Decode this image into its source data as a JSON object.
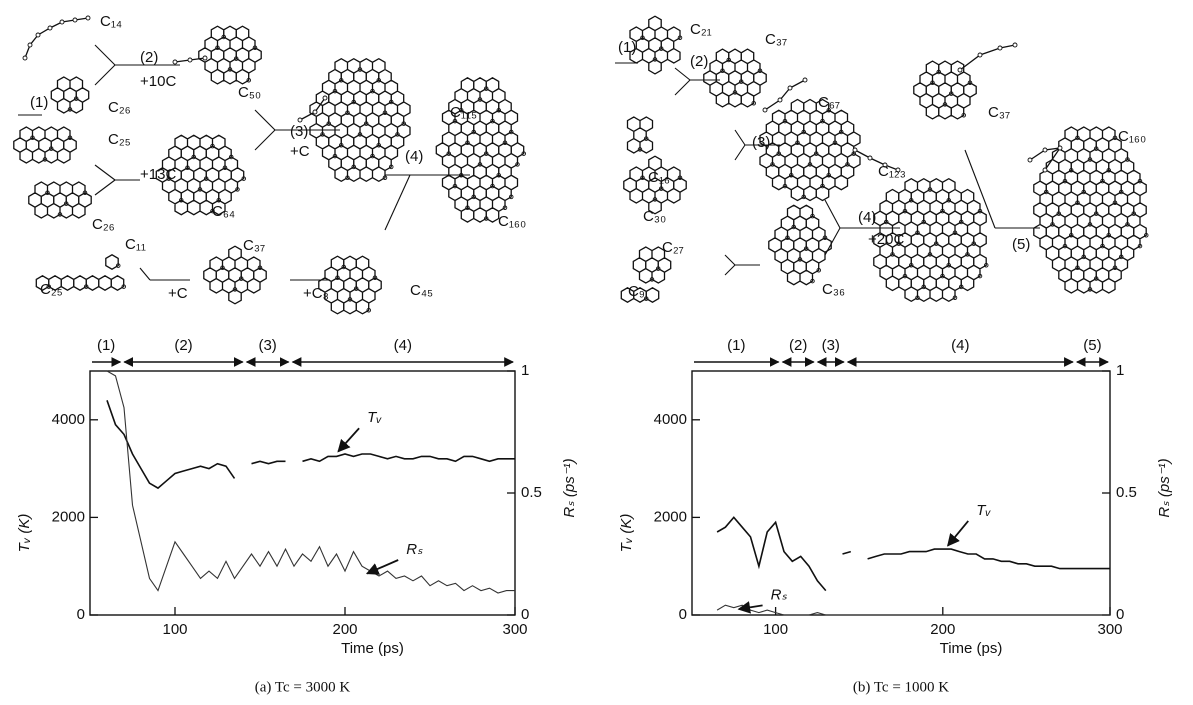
{
  "chart_data": [
    {
      "type": "line",
      "xlabel": "Time (ps)",
      "ylabel": "Tᵥ (K)",
      "y2label": "Rₛ (ps⁻¹)",
      "caption": "(a)   Tc = 3000 K",
      "xlim": [
        50,
        300
      ],
      "xticks": [
        100,
        200,
        300
      ],
      "ylim": [
        0,
        5000
      ],
      "yticks": [
        0,
        2000,
        4000
      ],
      "y2lim": [
        0,
        1
      ],
      "y2ticks": [
        0,
        0.5,
        1
      ],
      "x": [
        60,
        65,
        70,
        75,
        80,
        85,
        90,
        95,
        100,
        105,
        110,
        115,
        120,
        125,
        130,
        135,
        140,
        145,
        150,
        155,
        160,
        165,
        170,
        175,
        180,
        185,
        190,
        195,
        200,
        205,
        210,
        215,
        220,
        225,
        230,
        235,
        240,
        245,
        250,
        255,
        260,
        265,
        270,
        275,
        280,
        285,
        290,
        295,
        300
      ],
      "series": [
        {
          "name": "Tᵥ",
          "color": "#111111",
          "values": [
            4400,
            3900,
            3700,
            3300,
            3000,
            2700,
            2600,
            2750,
            2900,
            2950,
            3000,
            3050,
            3000,
            3100,
            3050,
            2800,
            null,
            3100,
            3150,
            3100,
            3150,
            3150,
            null,
            3150,
            3200,
            3150,
            3250,
            3250,
            3300,
            3250,
            3300,
            3300,
            3250,
            3200,
            3250,
            3200,
            3200,
            3250,
            3250,
            3200,
            3200,
            3150,
            3250,
            3250,
            3200,
            3150,
            3200,
            3200,
            3200
          ]
        },
        {
          "name": "Rₛ",
          "color": "#333333",
          "axis": "y2",
          "values": [
            1,
            0.98,
            0.85,
            0.45,
            0.3,
            0.15,
            0.1,
            0.2,
            0.3,
            0.25,
            0.2,
            0.15,
            0.18,
            0.15,
            0.22,
            0.15,
            0.2,
            0.25,
            0.2,
            0.26,
            0.2,
            0.27,
            0.2,
            0.25,
            0.22,
            0.28,
            0.2,
            0.25,
            0.18,
            0.26,
            0.2,
            0.18,
            0.16,
            0.18,
            0.15,
            0.16,
            0.14,
            0.16,
            0.12,
            0.14,
            0.12,
            0.13,
            0.1,
            0.12,
            0.1,
            0.11,
            0.09,
            0.1,
            0.1
          ]
        }
      ],
      "phases": {
        "labels": [
          "(1)",
          "(2)",
          "(3)",
          "(4)"
        ],
        "boundaries": [
          50,
          69,
          141,
          168,
          300
        ]
      }
    },
    {
      "type": "line",
      "xlabel": "Time (ps)",
      "ylabel": "Tᵥ (K)",
      "y2label": "Rₛ (ps⁻¹)",
      "caption": "(b) Tc = 1000 K",
      "xlim": [
        50,
        300
      ],
      "xticks": [
        100,
        200,
        300
      ],
      "ylim": [
        0,
        5000
      ],
      "yticks": [
        0,
        2000,
        4000
      ],
      "y2lim": [
        0,
        1
      ],
      "y2ticks": [
        0,
        0.5,
        1
      ],
      "x": [
        65,
        70,
        75,
        80,
        85,
        90,
        95,
        100,
        105,
        110,
        115,
        120,
        125,
        130,
        135,
        140,
        145,
        150,
        155,
        160,
        165,
        170,
        175,
        180,
        185,
        190,
        195,
        200,
        205,
        210,
        215,
        220,
        225,
        230,
        235,
        240,
        245,
        250,
        255,
        260,
        265,
        270,
        275,
        280,
        285,
        290,
        295,
        300
      ],
      "series": [
        {
          "name": "Tᵥ",
          "color": "#111111",
          "values": [
            1700,
            1800,
            2000,
            1800,
            1600,
            1000,
            1700,
            1900,
            1300,
            1100,
            1200,
            1000,
            700,
            500,
            null,
            1250,
            1300,
            null,
            1150,
            1200,
            1250,
            1250,
            1250,
            1300,
            1300,
            1300,
            1350,
            1350,
            1350,
            1300,
            1250,
            1250,
            1150,
            1150,
            1100,
            1100,
            1050,
            1050,
            1000,
            1000,
            1000,
            950,
            950,
            950,
            950,
            950,
            950,
            950
          ]
        },
        {
          "name": "Rₛ",
          "color": "#333333",
          "axis": "y2",
          "values": [
            0.02,
            0.04,
            0.03,
            0.04,
            0.02,
            0.01,
            0.02,
            0.01,
            0,
            0,
            0,
            0,
            0.01,
            0,
            0,
            0,
            0,
            0,
            0,
            0,
            0,
            0,
            0,
            0,
            0,
            0,
            0,
            0,
            0,
            0,
            0,
            0,
            0,
            0,
            0,
            0,
            0,
            0,
            0,
            0,
            0,
            0,
            0,
            0,
            0,
            0,
            0,
            0
          ]
        }
      ],
      "phases": {
        "labels": [
          "(1)",
          "(2)",
          "(3)",
          "(4)",
          "(5)"
        ],
        "boundaries": [
          50,
          103,
          124,
          142,
          279,
          300
        ]
      }
    }
  ],
  "diagrams": [
    {
      "labels": [
        "C₁₄",
        "(2)",
        "+10C",
        "C₅₀",
        "(1)",
        "C₂₆",
        "C₂₅",
        "+13C",
        "C₆₄",
        "(3)",
        "+C",
        "C₁₁₅",
        "(4)",
        "C₁₆₀",
        "C₂₆",
        "C₁₁",
        "C₃₇",
        "C₂₅",
        "+C",
        "+C₈",
        "C₄₅"
      ]
    },
    {
      "labels": [
        "C₂₁",
        "C₃₇",
        "(1)",
        "(2)",
        "C₆₇",
        "C₁₆",
        "(3)",
        "C₃₀",
        "C₁₂₃",
        "C₃₇",
        "C₁₆₀",
        "C₂₇",
        "(4)",
        "+20C",
        "(5)",
        "C₉",
        "C₃₆"
      ]
    }
  ]
}
